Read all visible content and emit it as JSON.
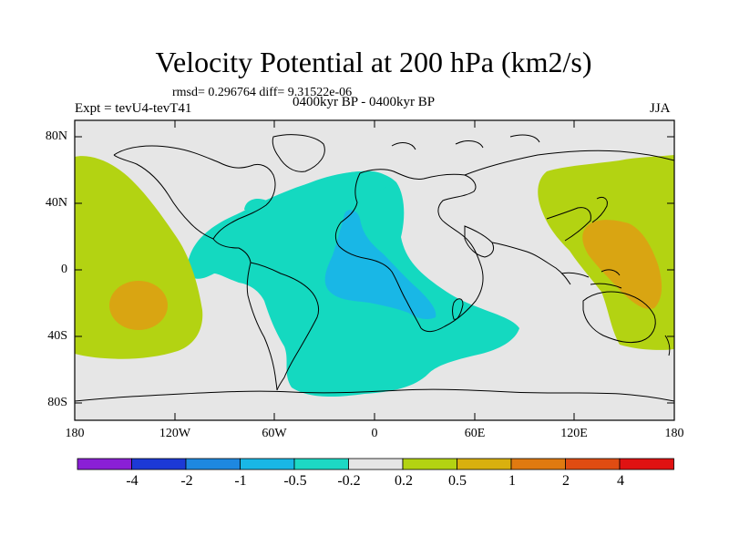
{
  "title": "Velocity Potential at 200 hPa (km2/s)",
  "stats": "rmsd= 0.296764 diff= 9.31522e-06",
  "experiment": "Expt = tevU4-tevT41",
  "period": "0400kyr BP - 0400kyr BP",
  "season": "JJA",
  "lat_ticks": [
    "80N",
    "40N",
    "0",
    "40S",
    "80S"
  ],
  "lon_ticks": [
    "180",
    "120W",
    "60W",
    "0",
    "60E",
    "120E",
    "180"
  ],
  "colorbar": {
    "labels": [
      "-4",
      "-2",
      "-1",
      "-0.5",
      "-0.2",
      "0.2",
      "0.5",
      "1",
      "2",
      "4"
    ],
    "colors": [
      "#8a1fd6",
      "#1c39d6",
      "#1e88e0",
      "#19b7e6",
      "#1dd9c4",
      "#e6e6e6",
      "#b3d312",
      "#d9b00e",
      "#e07a10",
      "#e04c12",
      "#e01212"
    ]
  },
  "field_colors": {
    "background": "#e6e6e6",
    "neg_light": "#14d9c0",
    "neg_mid": "#19b7e6",
    "pos_light": "#b3d312",
    "pos_mid": "#d9a512"
  }
}
